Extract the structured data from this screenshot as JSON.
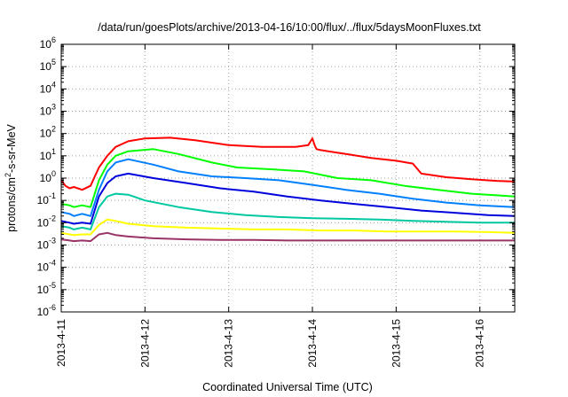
{
  "chart_data": {
    "type": "line",
    "title": "/data/run/goesPlots/archive/2013-04-16/10:00/flux/../flux/5daysMoonFluxes.txt",
    "xlabel": "Coordinated Universal Time (UTC)",
    "ylabel_parts": {
      "pre": "protons/cm",
      "sup": "2",
      "post": "-s-sr-MeV"
    },
    "y_scale": "log",
    "ylim": [
      1e-06,
      1000000.0
    ],
    "y_ticks": [
      {
        "base": "10",
        "exp": "-6"
      },
      {
        "base": "10",
        "exp": "-5"
      },
      {
        "base": "10",
        "exp": "-4"
      },
      {
        "base": "10",
        "exp": "-3"
      },
      {
        "base": "10",
        "exp": "-2"
      },
      {
        "base": "10",
        "exp": "-1"
      },
      {
        "base": "10",
        "exp": "0"
      },
      {
        "base": "10",
        "exp": "1"
      },
      {
        "base": "10",
        "exp": "2"
      },
      {
        "base": "10",
        "exp": "3"
      },
      {
        "base": "10",
        "exp": "4"
      },
      {
        "base": "10",
        "exp": "5"
      },
      {
        "base": "10",
        "exp": "6"
      }
    ],
    "x_ticks": [
      "2013-4-11",
      "2013-4-12",
      "2013-4-13",
      "2013-4-14",
      "2013-4-15",
      "2013-4-16"
    ],
    "xlim": [
      "2013-04-11 00:00",
      "2013-04-16 10:00"
    ],
    "grid": true,
    "series": [
      {
        "color": "#ff0000",
        "x": [
          "2013-04-11 00:00",
          "2013-04-11 01:12",
          "2013-04-11 02:24",
          "2013-04-11 03:36",
          "2013-04-11 06:00",
          "2013-04-11 08:24",
          "2013-04-11 10:48",
          "2013-04-11 13:12",
          "2013-04-11 15:36",
          "2013-04-11 19:12",
          "2013-04-12 00:00",
          "2013-04-12 07:12",
          "2013-04-12 14:24",
          "2013-04-13 00:00",
          "2013-04-13 09:36",
          "2013-04-13 19:12",
          "2013-04-13 22:48",
          "2013-04-14 00:00",
          "2013-04-14 00:43",
          "2013-04-14 01:12",
          "2013-04-14 02:24",
          "2013-04-14 09:36",
          "2013-04-14 16:48",
          "2013-04-15 00:00",
          "2013-04-15 04:48",
          "2013-04-15 07:12",
          "2013-04-15 14:24",
          "2013-04-15 21:36",
          "2013-04-16 04:48",
          "2013-04-16 10:00"
        ],
        "y": [
          0.8,
          0.45,
          0.35,
          0.4,
          0.3,
          0.45,
          3,
          10,
          25,
          45,
          60,
          65,
          50,
          30,
          25,
          25,
          30,
          60,
          28,
          20,
          18,
          12,
          8,
          6,
          4.5,
          1.6,
          1.1,
          0.9,
          0.75,
          0.7
        ]
      },
      {
        "color": "#00ff00",
        "x": [
          "2013-04-11 00:00",
          "2013-04-11 02:24",
          "2013-04-11 03:36",
          "2013-04-11 06:00",
          "2013-04-11 08:24",
          "2013-04-11 10:48",
          "2013-04-11 13:12",
          "2013-04-11 15:36",
          "2013-04-11 19:12",
          "2013-04-12 02:24",
          "2013-04-12 09:36",
          "2013-04-12 19:12",
          "2013-04-13 02:24",
          "2013-04-13 12:00",
          "2013-04-13 21:36",
          "2013-04-14 07:12",
          "2013-04-14 16:48",
          "2013-04-15 02:24",
          "2013-04-15 12:00",
          "2013-04-15 21:36",
          "2013-04-16 04:48",
          "2013-04-16 10:00"
        ],
        "y": [
          0.07,
          0.06,
          0.05,
          0.06,
          0.05,
          0.8,
          4,
          10,
          16,
          20,
          12,
          5,
          3,
          2.5,
          2,
          1,
          0.8,
          0.45,
          0.3,
          0.2,
          0.17,
          0.15
        ]
      },
      {
        "color": "#0080ff",
        "x": [
          "2013-04-11 00:00",
          "2013-04-11 02:24",
          "2013-04-11 03:36",
          "2013-04-11 06:00",
          "2013-04-11 08:24",
          "2013-04-11 10:48",
          "2013-04-11 13:12",
          "2013-04-11 15:36",
          "2013-04-11 19:12",
          "2013-04-12 02:24",
          "2013-04-12 09:36",
          "2013-04-12 19:12",
          "2013-04-13 04:48",
          "2013-04-13 14:24",
          "2013-04-14 00:00",
          "2013-04-14 09:36",
          "2013-04-14 19:12",
          "2013-04-15 04:48",
          "2013-04-15 14:24",
          "2013-04-16 00:00",
          "2013-04-16 10:00"
        ],
        "y": [
          0.03,
          0.025,
          0.02,
          0.025,
          0.02,
          0.3,
          2,
          5,
          7,
          4,
          2,
          1.2,
          1,
          0.8,
          0.5,
          0.3,
          0.2,
          0.12,
          0.08,
          0.06,
          0.05
        ]
      },
      {
        "color": "#0000dd",
        "x": [
          "2013-04-11 00:00",
          "2013-04-11 02:24",
          "2013-04-11 03:36",
          "2013-04-11 06:00",
          "2013-04-11 08:24",
          "2013-04-11 10:48",
          "2013-04-11 13:12",
          "2013-04-11 15:36",
          "2013-04-11 19:12",
          "2013-04-12 02:24",
          "2013-04-12 12:00",
          "2013-04-12 21:36",
          "2013-04-13 07:12",
          "2013-04-13 16:48",
          "2013-04-14 02:24",
          "2013-04-14 12:00",
          "2013-04-14 21:36",
          "2013-04-15 07:12",
          "2013-04-15 16:48",
          "2013-04-16 02:24",
          "2013-04-16 10:00"
        ],
        "y": [
          0.012,
          0.01,
          0.009,
          0.01,
          0.009,
          0.15,
          0.6,
          1.2,
          1.6,
          1,
          0.6,
          0.35,
          0.25,
          0.15,
          0.1,
          0.07,
          0.05,
          0.035,
          0.028,
          0.022,
          0.02
        ]
      },
      {
        "color": "#00c8a0",
        "x": [
          "2013-04-11 00:00",
          "2013-04-11 02:24",
          "2013-04-11 03:36",
          "2013-04-11 06:00",
          "2013-04-11 08:24",
          "2013-04-11 10:48",
          "2013-04-11 13:12",
          "2013-04-11 15:36",
          "2013-04-11 19:12",
          "2013-04-12 00:00",
          "2013-04-12 09:36",
          "2013-04-12 19:12",
          "2013-04-13 04:48",
          "2013-04-13 14:24",
          "2013-04-14 00:00",
          "2013-04-14 09:36",
          "2013-04-14 19:12",
          "2013-04-15 04:48",
          "2013-04-15 14:24",
          "2013-04-16 00:00",
          "2013-04-16 10:00"
        ],
        "y": [
          0.007,
          0.006,
          0.005,
          0.006,
          0.005,
          0.05,
          0.15,
          0.2,
          0.18,
          0.1,
          0.05,
          0.03,
          0.022,
          0.018,
          0.016,
          0.015,
          0.014,
          0.012,
          0.011,
          0.01,
          0.01
        ]
      },
      {
        "color": "#ffff00",
        "x": [
          "2013-04-11 00:00",
          "2013-04-11 02:24",
          "2013-04-11 03:36",
          "2013-04-11 06:00",
          "2013-04-11 08:24",
          "2013-04-11 10:48",
          "2013-04-11 13:12",
          "2013-04-11 15:36",
          "2013-04-11 19:12",
          "2013-04-12 02:24",
          "2013-04-12 12:00",
          "2013-04-12 21:36",
          "2013-04-13 07:12",
          "2013-04-13 16:48",
          "2013-04-14 02:24",
          "2013-04-14 12:00",
          "2013-04-14 21:36",
          "2013-04-15 07:12",
          "2013-04-15 16:48",
          "2013-04-16 02:24",
          "2013-04-16 10:00"
        ],
        "y": [
          0.0035,
          0.003,
          0.0028,
          0.003,
          0.003,
          0.008,
          0.014,
          0.012,
          0.009,
          0.007,
          0.006,
          0.0055,
          0.005,
          0.005,
          0.0045,
          0.0045,
          0.004,
          0.004,
          0.004,
          0.0038,
          0.0035
        ]
      },
      {
        "color": "#993366",
        "x": [
          "2013-04-11 00:00",
          "2013-04-11 02:24",
          "2013-04-11 03:36",
          "2013-04-11 06:00",
          "2013-04-11 08:24",
          "2013-04-11 10:48",
          "2013-04-11 13:12",
          "2013-04-11 15:36",
          "2013-04-11 19:12",
          "2013-04-12 02:24",
          "2013-04-12 12:00",
          "2013-04-12 21:36",
          "2013-04-13 07:12",
          "2013-04-13 16:48",
          "2013-04-14 02:24",
          "2013-04-14 12:00",
          "2013-04-14 21:36",
          "2013-04-15 07:12",
          "2013-04-15 16:48",
          "2013-04-16 02:24",
          "2013-04-16 10:00"
        ],
        "y": [
          0.0018,
          0.0016,
          0.0015,
          0.0016,
          0.0015,
          0.003,
          0.0035,
          0.0028,
          0.0024,
          0.002,
          0.0018,
          0.0017,
          0.0017,
          0.0016,
          0.0016,
          0.0016,
          0.0016,
          0.0016,
          0.0016,
          0.0016,
          0.0016
        ]
      }
    ]
  }
}
